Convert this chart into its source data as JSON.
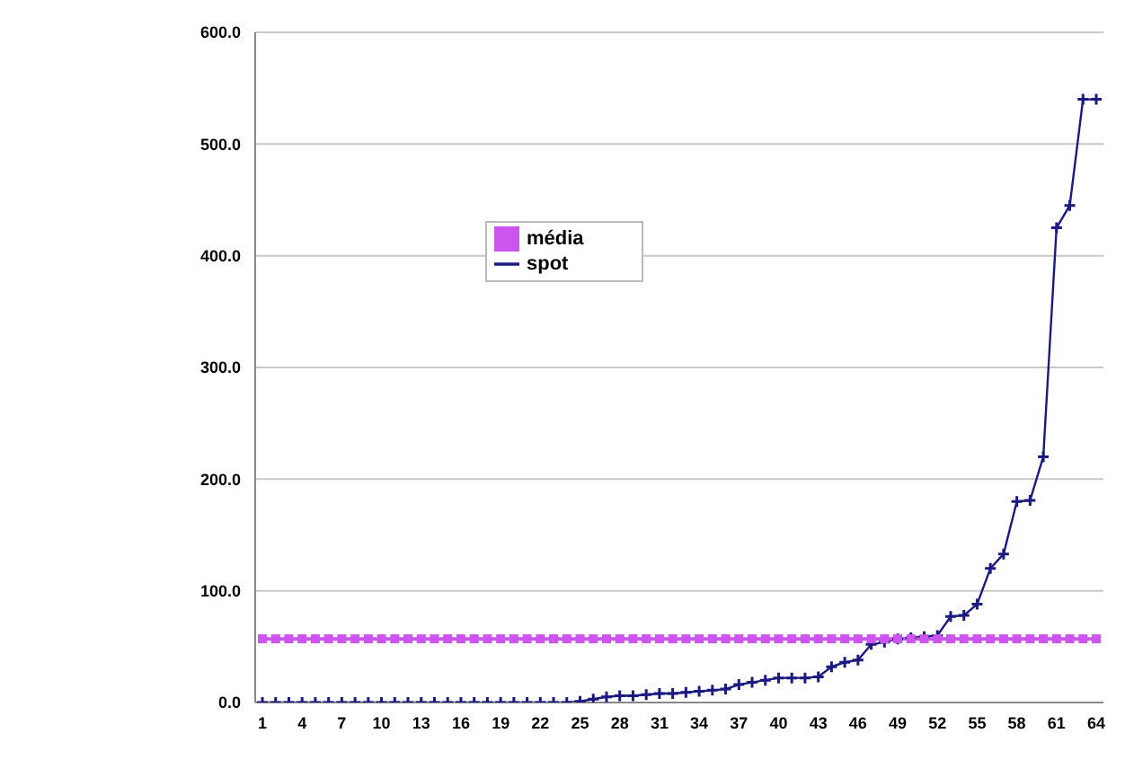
{
  "chart_data": {
    "type": "line",
    "categories": [
      "1",
      null,
      null,
      "4",
      null,
      null,
      "7",
      null,
      null,
      "10",
      null,
      null,
      "13",
      null,
      null,
      "16",
      null,
      null,
      "19",
      null,
      null,
      "22",
      null,
      null,
      "25",
      null,
      null,
      "28",
      null,
      null,
      "31",
      null,
      null,
      "34",
      null,
      null,
      "37",
      null,
      null,
      "40",
      null,
      null,
      "43",
      null,
      null,
      "46",
      null,
      null,
      "49",
      null,
      null,
      "52",
      null,
      null,
      "55",
      null,
      null,
      "58",
      null,
      null,
      "61",
      null,
      null,
      "64"
    ],
    "series": [
      {
        "name": "spot",
        "color": "#1a1a80",
        "marker": "cross",
        "values": [
          0,
          0,
          0,
          0,
          0,
          0,
          0,
          0,
          0,
          0,
          0,
          0,
          0,
          0,
          0,
          0,
          0,
          0,
          0,
          0,
          0,
          0,
          0,
          0,
          1,
          3,
          5,
          6,
          6,
          7,
          8,
          8,
          9,
          10,
          11,
          12,
          16,
          18,
          20,
          22,
          22,
          22,
          23,
          32,
          36,
          38,
          52,
          54,
          57,
          58,
          59,
          60,
          77,
          78,
          88,
          120,
          133,
          180,
          181,
          220,
          425,
          445,
          540,
          540
        ]
      },
      {
        "name": "média",
        "color": "#cc55ee",
        "marker": "square",
        "values": [
          57,
          57,
          57,
          57,
          57,
          57,
          57,
          57,
          57,
          57,
          57,
          57,
          57,
          57,
          57,
          57,
          57,
          57,
          57,
          57,
          57,
          57,
          57,
          57,
          57,
          57,
          57,
          57,
          57,
          57,
          57,
          57,
          57,
          57,
          57,
          57,
          57,
          57,
          57,
          57,
          57,
          57,
          57,
          57,
          57,
          57,
          57,
          57,
          57,
          57,
          57,
          57,
          57,
          57,
          57,
          57,
          57,
          57,
          57,
          57,
          57,
          57,
          57,
          57
        ]
      }
    ],
    "ylim": [
      0,
      600
    ],
    "yticks": [
      {
        "value": 0,
        "label": "0.0"
      },
      {
        "value": 100,
        "label": "100.0"
      },
      {
        "value": 200,
        "label": "200.0"
      },
      {
        "value": 300,
        "label": "300.0"
      },
      {
        "value": 400,
        "label": "400.0"
      },
      {
        "value": 500,
        "label": "500.0"
      },
      {
        "value": 600,
        "label": "600.0"
      }
    ],
    "grid": "y",
    "legend": "top"
  }
}
